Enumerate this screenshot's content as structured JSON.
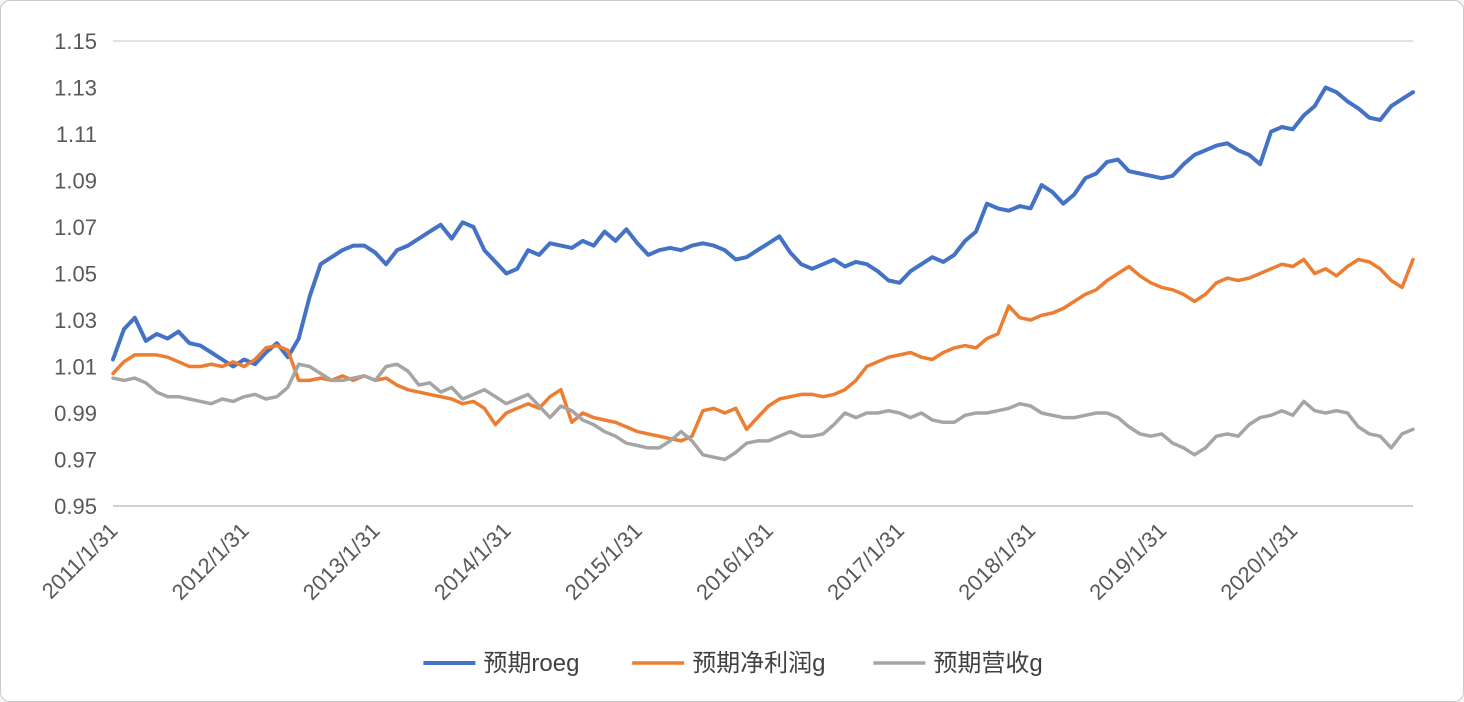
{
  "chart_data": {
    "type": "line",
    "title": "",
    "xlabel": "",
    "ylabel": "",
    "ylim": [
      0.95,
      1.15
    ],
    "grid": false,
    "legend_position": "bottom",
    "n_points": 120,
    "y_ticks": [
      0.95,
      0.97,
      0.99,
      1.01,
      1.03,
      1.05,
      1.07,
      1.09,
      1.11,
      1.13,
      1.15
    ],
    "x_tick_labels": [
      "2011/1/31",
      "2012/1/31",
      "2013/1/31",
      "2014/1/31",
      "2015/1/31",
      "2016/1/31",
      "2017/1/31",
      "2018/1/31",
      "2019/1/31",
      "2020/1/31"
    ],
    "x_tick_indices": [
      0,
      12,
      24,
      36,
      48,
      60,
      72,
      84,
      96,
      108
    ],
    "series": [
      {
        "name": "预期roeg",
        "color": "#4472C4",
        "width": 4,
        "values": [
          1.013,
          1.026,
          1.031,
          1.021,
          1.024,
          1.022,
          1.025,
          1.02,
          1.019,
          1.016,
          1.013,
          1.01,
          1.013,
          1.011,
          1.016,
          1.02,
          1.014,
          1.022,
          1.04,
          1.054,
          1.057,
          1.06,
          1.062,
          1.062,
          1.059,
          1.054,
          1.06,
          1.062,
          1.065,
          1.068,
          1.071,
          1.065,
          1.072,
          1.07,
          1.06,
          1.055,
          1.05,
          1.052,
          1.06,
          1.058,
          1.063,
          1.062,
          1.061,
          1.064,
          1.062,
          1.068,
          1.064,
          1.069,
          1.063,
          1.058,
          1.06,
          1.061,
          1.06,
          1.062,
          1.063,
          1.062,
          1.06,
          1.056,
          1.057,
          1.06,
          1.063,
          1.066,
          1.059,
          1.054,
          1.052,
          1.054,
          1.056,
          1.053,
          1.055,
          1.054,
          1.051,
          1.047,
          1.046,
          1.051,
          1.054,
          1.057,
          1.055,
          1.058,
          1.064,
          1.068,
          1.08,
          1.078,
          1.077,
          1.079,
          1.078,
          1.088,
          1.085,
          1.08,
          1.084,
          1.091,
          1.093,
          1.098,
          1.099,
          1.094,
          1.093,
          1.092,
          1.091,
          1.092,
          1.097,
          1.101,
          1.103,
          1.105,
          1.106,
          1.103,
          1.101,
          1.097,
          1.111,
          1.113,
          1.112,
          1.118,
          1.122,
          1.13,
          1.128,
          1.124,
          1.121,
          1.117,
          1.116,
          1.122,
          1.125,
          1.128
        ]
      },
      {
        "name": "预期净利润g",
        "color": "#ED7D31",
        "width": 3.5,
        "values": [
          1.007,
          1.012,
          1.015,
          1.015,
          1.015,
          1.014,
          1.012,
          1.01,
          1.01,
          1.011,
          1.01,
          1.012,
          1.01,
          1.013,
          1.018,
          1.019,
          1.017,
          1.004,
          1.004,
          1.005,
          1.004,
          1.006,
          1.004,
          1.006,
          1.004,
          1.005,
          1.002,
          1.0,
          0.999,
          0.998,
          0.997,
          0.996,
          0.994,
          0.995,
          0.992,
          0.985,
          0.99,
          0.992,
          0.994,
          0.992,
          0.997,
          1.0,
          0.986,
          0.99,
          0.988,
          0.987,
          0.986,
          0.984,
          0.982,
          0.981,
          0.98,
          0.979,
          0.978,
          0.98,
          0.991,
          0.992,
          0.99,
          0.992,
          0.983,
          0.988,
          0.993,
          0.996,
          0.997,
          0.998,
          0.998,
          0.997,
          0.998,
          1.0,
          1.004,
          1.01,
          1.012,
          1.014,
          1.015,
          1.016,
          1.014,
          1.013,
          1.016,
          1.018,
          1.019,
          1.018,
          1.022,
          1.024,
          1.036,
          1.031,
          1.03,
          1.032,
          1.033,
          1.035,
          1.038,
          1.041,
          1.043,
          1.047,
          1.05,
          1.053,
          1.049,
          1.046,
          1.044,
          1.043,
          1.041,
          1.038,
          1.041,
          1.046,
          1.048,
          1.047,
          1.048,
          1.05,
          1.052,
          1.054,
          1.053,
          1.056,
          1.05,
          1.052,
          1.049,
          1.053,
          1.056,
          1.055,
          1.052,
          1.047,
          1.044,
          1.056
        ]
      },
      {
        "name": "预期营收g",
        "color": "#A5A5A5",
        "width": 3.5,
        "values": [
          1.005,
          1.004,
          1.005,
          1.003,
          0.999,
          0.997,
          0.997,
          0.996,
          0.995,
          0.994,
          0.996,
          0.995,
          0.997,
          0.998,
          0.996,
          0.997,
          1.001,
          1.011,
          1.01,
          1.007,
          1.004,
          1.004,
          1.005,
          1.006,
          1.004,
          1.01,
          1.011,
          1.008,
          1.002,
          1.003,
          0.999,
          1.001,
          0.996,
          0.998,
          1.0,
          0.997,
          0.994,
          0.996,
          0.998,
          0.993,
          0.988,
          0.993,
          0.991,
          0.987,
          0.985,
          0.982,
          0.98,
          0.977,
          0.976,
          0.975,
          0.975,
          0.978,
          0.982,
          0.978,
          0.972,
          0.971,
          0.97,
          0.973,
          0.977,
          0.978,
          0.978,
          0.98,
          0.982,
          0.98,
          0.98,
          0.981,
          0.985,
          0.99,
          0.988,
          0.99,
          0.99,
          0.991,
          0.99,
          0.988,
          0.99,
          0.987,
          0.986,
          0.986,
          0.989,
          0.99,
          0.99,
          0.991,
          0.992,
          0.994,
          0.993,
          0.99,
          0.989,
          0.988,
          0.988,
          0.989,
          0.99,
          0.99,
          0.988,
          0.984,
          0.981,
          0.98,
          0.981,
          0.977,
          0.975,
          0.972,
          0.975,
          0.98,
          0.981,
          0.98,
          0.985,
          0.988,
          0.989,
          0.991,
          0.989,
          0.995,
          0.991,
          0.99,
          0.991,
          0.99,
          0.984,
          0.981,
          0.98,
          0.975,
          0.981,
          0.983
        ]
      }
    ]
  },
  "styles": {
    "text_color": "#595959",
    "axis_line_color": "#bfbfbf",
    "top_gridline_color": "#d9d9d9",
    "background": "#ffffff"
  }
}
